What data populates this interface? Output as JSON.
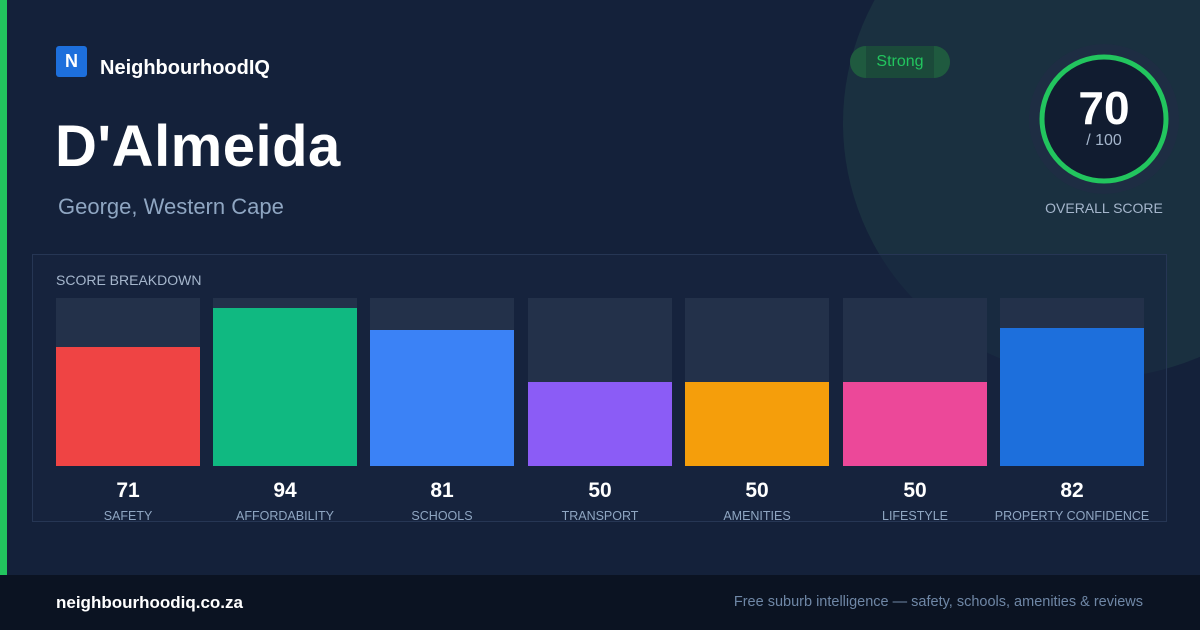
{
  "brand": {
    "logo_letter": "N",
    "name": "NeighbourhoodIQ"
  },
  "suburb": {
    "name": "D'Almeida",
    "location": "George, Western Cape"
  },
  "rating": {
    "label": "Strong",
    "color": "#22c55e"
  },
  "overall": {
    "score": "70",
    "out_of": "/ 100",
    "caption": "OVERALL SCORE",
    "fraction": 0.7
  },
  "breakdown": {
    "title": "SCORE BREAKDOWN",
    "max": 100,
    "items": [
      {
        "label": "SAFETY",
        "value": "71",
        "color": "#ef4444"
      },
      {
        "label": "AFFORDABILITY",
        "value": "94",
        "color": "#10b981"
      },
      {
        "label": "SCHOOLS",
        "value": "81",
        "color": "#3b82f6"
      },
      {
        "label": "TRANSPORT",
        "value": "50",
        "color": "#8b5cf6"
      },
      {
        "label": "AMENITIES",
        "value": "50",
        "color": "#f59e0b"
      },
      {
        "label": "LIFESTYLE",
        "value": "50",
        "color": "#ec4899"
      },
      {
        "label": "PROPERTY CONFIDENCE",
        "value": "82",
        "color": "#1d6fdc"
      }
    ]
  },
  "footer": {
    "domain": "neighbourhoodiq.co.za",
    "tagline": "Free suburb intelligence — safety, schools, amenities & reviews"
  }
}
